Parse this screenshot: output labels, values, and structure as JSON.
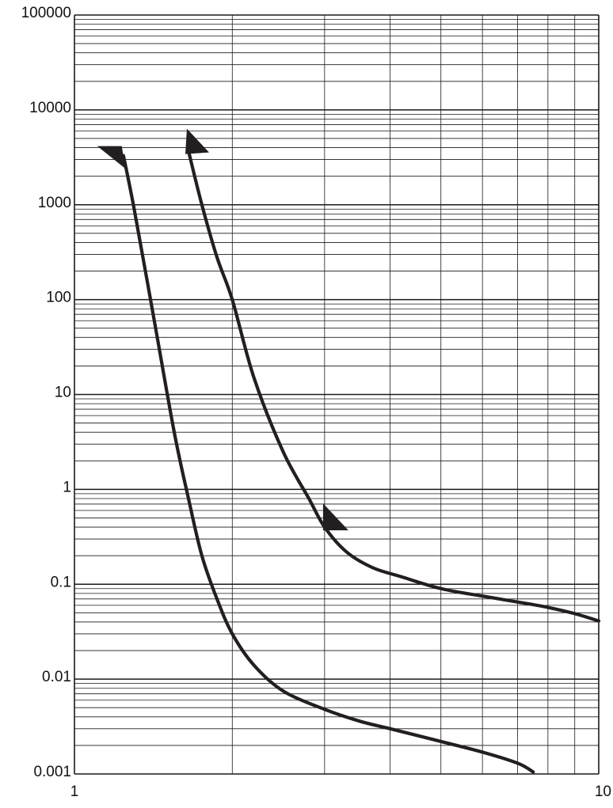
{
  "chart_data": {
    "type": "line",
    "x_scale": "log",
    "y_scale": "log",
    "xlim": [
      1,
      10
    ],
    "ylim": [
      0.001,
      100000
    ],
    "grid": true,
    "x_tick_labels": [
      "1",
      "10"
    ],
    "y_tick_labels": [
      "0.001",
      "0.01",
      "0.1",
      "1",
      "10",
      "100",
      "1000",
      "10000",
      "100000"
    ],
    "series": [
      {
        "x": [
          1.24,
          1.3,
          1.42,
          1.55,
          1.65,
          1.75,
          1.87,
          2.0,
          2.2,
          2.5,
          3.0,
          3.5,
          4.0,
          5.0,
          6.0,
          7.0,
          7.5
        ],
        "y": [
          3300,
          900,
          60,
          4,
          0.8,
          0.2,
          0.07,
          0.03,
          0.014,
          0.0075,
          0.0048,
          0.0036,
          0.003,
          0.0022,
          0.0017,
          0.0013,
          0.00105
        ]
      },
      {
        "x": [
          1.65,
          1.75,
          1.87,
          2.0,
          2.2,
          2.5,
          2.8,
          3.0,
          3.3,
          3.7,
          4.2,
          5.0,
          6.0,
          7.0,
          8.0,
          9.0,
          10.0
        ],
        "y": [
          3700,
          1000,
          280,
          100,
          15,
          2.5,
          0.8,
          0.4,
          0.22,
          0.15,
          0.12,
          0.09,
          0.075,
          0.065,
          0.057,
          0.049,
          0.041
        ]
      }
    ],
    "arrows": [
      {
        "series": 0,
        "x": 1.24,
        "y": 3300,
        "points": "up-left"
      },
      {
        "series": 1,
        "x": 1.65,
        "y": 3700,
        "points": "up-right"
      },
      {
        "series": 1,
        "x": 3.0,
        "y": 0.4,
        "points": "down-right"
      }
    ]
  }
}
